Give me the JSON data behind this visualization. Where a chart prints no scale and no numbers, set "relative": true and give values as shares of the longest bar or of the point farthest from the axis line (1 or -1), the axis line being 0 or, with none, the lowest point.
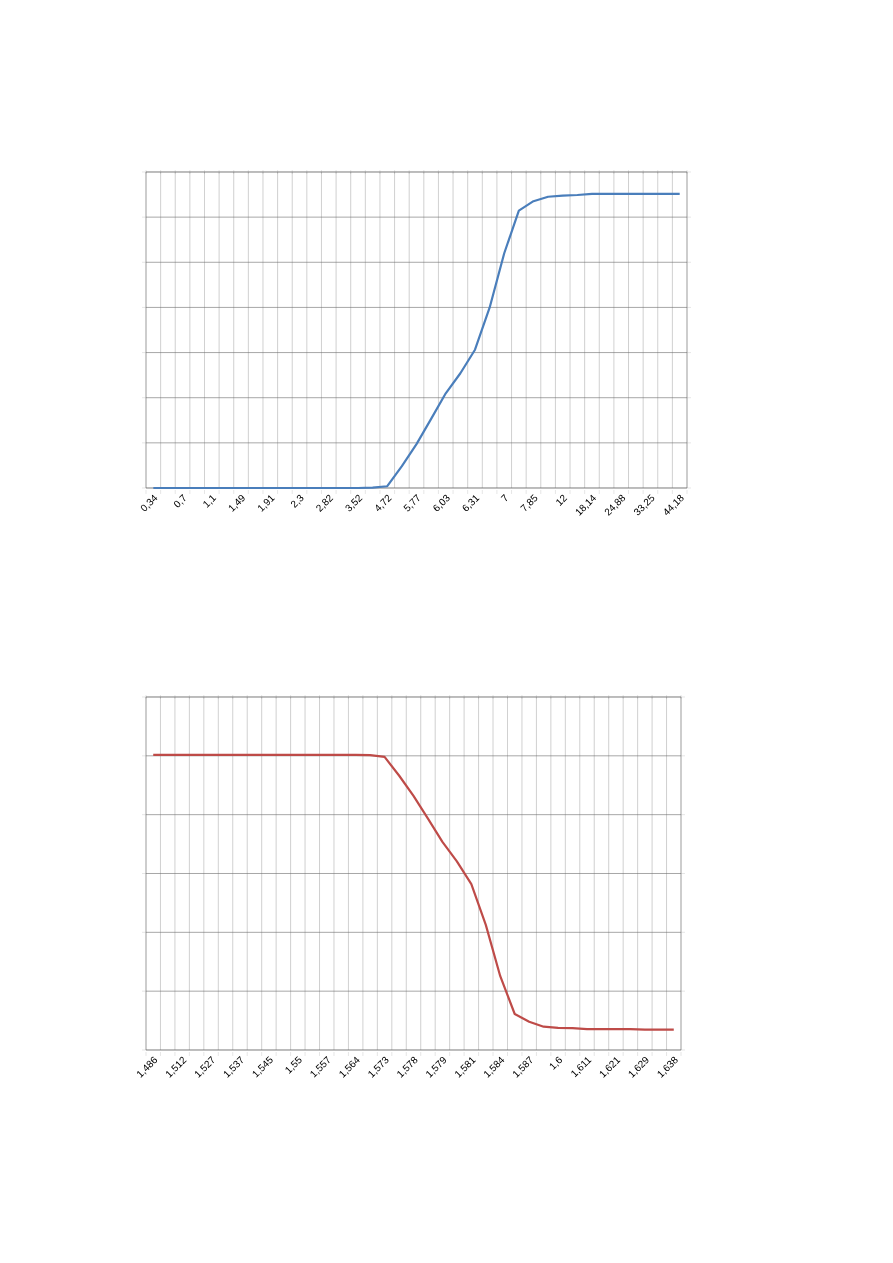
{
  "chart_data": [
    {
      "type": "line",
      "relative": true,
      "grid": true,
      "categories": [
        "0,34",
        null,
        "0,7",
        null,
        "1,1",
        null,
        "1,49",
        null,
        "1,91",
        null,
        "2,3",
        null,
        "2,82",
        null,
        "3,52",
        null,
        "4,72",
        null,
        "5,77",
        null,
        "6,03",
        null,
        "6,31",
        null,
        "7",
        null,
        "7,85",
        null,
        "12",
        null,
        "18,14",
        null,
        "24,88",
        null,
        "33,25",
        null,
        "44,18"
      ],
      "series": [
        {
          "color": "#4a7ebb",
          "values": [
            0,
            0,
            0,
            0,
            0,
            0,
            0,
            0,
            0,
            0,
            0,
            0,
            0,
            0,
            0,
            0.001,
            0.006,
            0.074,
            0.149,
            0.235,
            0.322,
            0.39,
            0.47,
            0.613,
            0.798,
            0.943,
            0.975,
            0.99,
            0.994,
            0.996,
            1,
            1,
            1,
            1,
            1,
            1,
            1
          ]
        }
      ]
    },
    {
      "type": "line",
      "relative": true,
      "grid": true,
      "categories": [
        "1,486",
        null,
        "1,512",
        null,
        "1,527",
        null,
        "1,537",
        null,
        "1,545",
        null,
        "1,55",
        null,
        "1,557",
        null,
        "1,564",
        null,
        "1,573",
        null,
        "1,578",
        null,
        "1,579",
        null,
        "1,581",
        null,
        "1,584",
        null,
        "1,587",
        null,
        "1,6",
        null,
        "1,611",
        null,
        "1,621",
        null,
        "1,629",
        null,
        "1,638"
      ],
      "series": [
        {
          "color": "#be4b48",
          "values": [
            1,
            1,
            1,
            1,
            1,
            1,
            1,
            1,
            1,
            1,
            1,
            1,
            1,
            1,
            1,
            0.999,
            0.993,
            0.93,
            0.861,
            0.784,
            0.705,
            0.639,
            0.562,
            0.424,
            0.25,
            0.122,
            0.096,
            0.079,
            0.075,
            0.074,
            0.071,
            0.071,
            0.071,
            0.071,
            0.069,
            0.069,
            0.069
          ]
        }
      ]
    }
  ]
}
